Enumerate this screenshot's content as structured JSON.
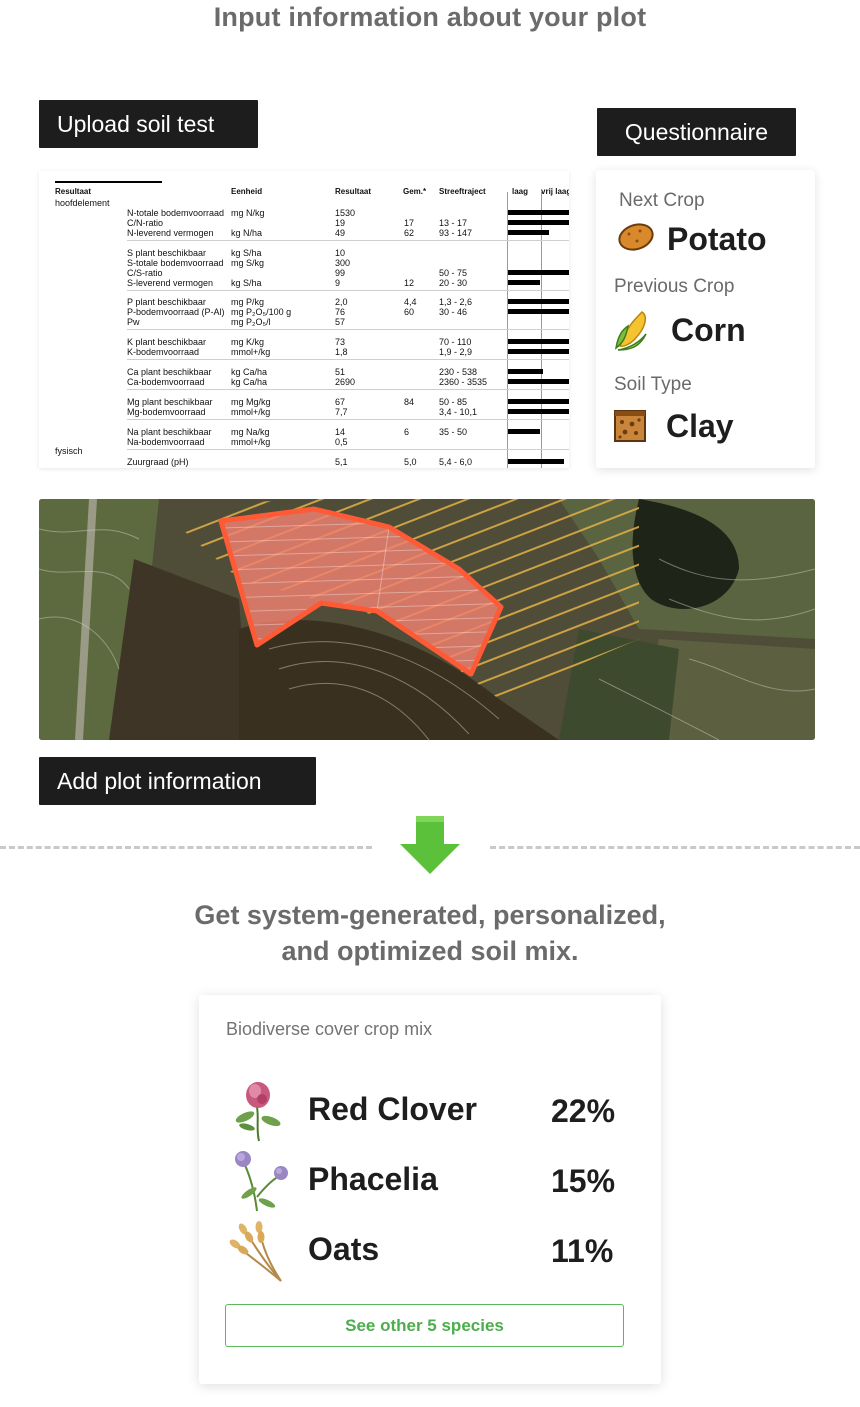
{
  "heading": "Input information about your plot",
  "tags": {
    "upload": "Upload soil test",
    "questionnaire": "Questionnaire",
    "plot": "Add plot information"
  },
  "soil_test": {
    "headers": [
      "Resultaat",
      "Eenheid",
      "Resultaat",
      "Gem.*",
      "Streeftraject",
      "laag",
      "vrij laag"
    ],
    "section_main": "hoofdelement",
    "section_physical": "fysisch",
    "rows": [
      {
        "param": "N-totale bodemvoorraad",
        "unit": "mg N/kg",
        "result": "1530",
        "avg": "",
        "range": "",
        "bar": 1.0
      },
      {
        "param": "C/N-ratio",
        "unit": "",
        "result": "19",
        "avg": "17",
        "range": "13 - 17",
        "bar": 1.0
      },
      {
        "param": "N-leverend vermogen",
        "unit": "kg N/ha",
        "result": "49",
        "avg": "62",
        "range": "93 - 147",
        "bar": 0.68
      },
      {
        "param": "S plant beschikbaar",
        "unit": "kg S/ha",
        "result": "10",
        "avg": "",
        "range": "",
        "bar": 0
      },
      {
        "param": "S-totale bodemvoorraad",
        "unit": "mg S/kg",
        "result": "300",
        "avg": "",
        "range": "",
        "bar": 0
      },
      {
        "param": "C/S-ratio",
        "unit": "",
        "result": "99",
        "avg": "",
        "range": "50 - 75",
        "bar": 1.0
      },
      {
        "param": "S-leverend vermogen",
        "unit": "kg S/ha",
        "result": "9",
        "avg": "12",
        "range": "20 - 30",
        "bar": 0.52
      },
      {
        "param": "P plant beschikbaar",
        "unit": "mg P/kg",
        "result": "2,0",
        "avg": "4,4",
        "range": "1,3 - 2,6",
        "bar": 1.0
      },
      {
        "param": "P-bodemvoorraad (P-Al)",
        "unit": "mg P₂O₅/100 g",
        "result": "76",
        "avg": "60",
        "range": "30 - 46",
        "bar": 1.0
      },
      {
        "param": "Pw",
        "unit": "mg P₂O₅/l",
        "result": "57",
        "avg": "",
        "range": "",
        "bar": 0
      },
      {
        "param": "K plant beschikbaar",
        "unit": "mg K/kg",
        "result": "73",
        "avg": "",
        "range": "70 - 110",
        "bar": 1.0
      },
      {
        "param": "K-bodemvoorraad",
        "unit": "mmol+/kg",
        "result": "1,8",
        "avg": "",
        "range": "1,9 - 2,9",
        "bar": 1.0
      },
      {
        "param": "Ca plant beschikbaar",
        "unit": "kg Ca/ha",
        "result": "51",
        "avg": "",
        "range": "230 - 538",
        "bar": 0.58
      },
      {
        "param": "Ca-bodemvoorraad",
        "unit": "kg Ca/ha",
        "result": "2690",
        "avg": "",
        "range": "2360 - 3535",
        "bar": 1.0
      },
      {
        "param": "Mg plant beschikbaar",
        "unit": "mg Mg/kg",
        "result": "67",
        "avg": "84",
        "range": "50 - 85",
        "bar": 1.0
      },
      {
        "param": "Mg-bodemvoorraad",
        "unit": "mmol+/kg",
        "result": "7,7",
        "avg": "",
        "range": "3,4 - 10,1",
        "bar": 1.0
      },
      {
        "param": "Na plant beschikbaar",
        "unit": "mg Na/kg",
        "result": "14",
        "avg": "6",
        "range": "35 - 50",
        "bar": 0.52
      },
      {
        "param": "Na-bodemvoorraad",
        "unit": "mmol+/kg",
        "result": "0,5",
        "avg": "",
        "range": "",
        "bar": 0
      },
      {
        "param": "Zuurgraad (pH)",
        "unit": "",
        "result": "5,1",
        "avg": "5,0",
        "range": "5,4 - 6,0",
        "bar": 0.92
      }
    ]
  },
  "questionnaire": {
    "next_crop_label": "Next Crop",
    "next_crop": "Potato",
    "previous_crop_label": "Previous Crop",
    "previous_crop": "Corn",
    "soil_type_label": "Soil Type",
    "soil_type": "Clay",
    "icons": [
      "potato-icon",
      "corn-icon",
      "clay-soil-icon"
    ]
  },
  "subheading_line1": "Get system-generated, personalized,",
  "subheading_line2": "and optimized soil mix.",
  "mix": {
    "title": "Biodiverse cover crop mix",
    "items": [
      {
        "name": "Red Clover",
        "percent": "22%",
        "icon": "red-clover-icon"
      },
      {
        "name": "Phacelia",
        "percent": "15%",
        "icon": "phacelia-icon"
      },
      {
        "name": "Oats",
        "percent": "11%",
        "icon": "oats-icon"
      }
    ],
    "more_button": "See other 5 species"
  },
  "colors": {
    "tag_bg": "#1d1d1d",
    "plot_outline": "#ff5a36",
    "arrow_green": "#5cc13a",
    "button_green": "#4cae4c"
  }
}
